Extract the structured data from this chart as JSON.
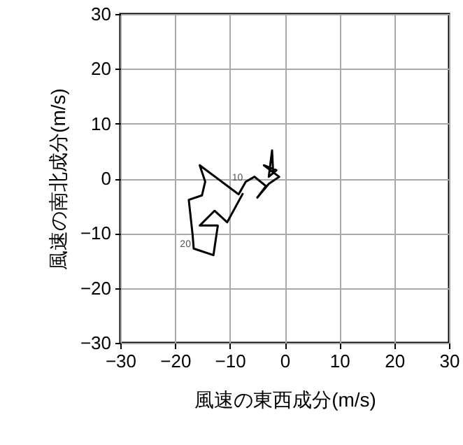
{
  "chart_data": {
    "type": "line",
    "xlabel": "風速の東西成分(m/s)",
    "ylabel": "風速の南北成分(m/s)",
    "x": [
      -2.1,
      -2.3,
      -2.9,
      -1.5,
      -3.8,
      -1.0,
      -2.9,
      -5.0,
      -3.4,
      -5.5,
      -7.1,
      -8.4,
      -15.5,
      -14.5,
      -15.1,
      -17.5,
      -16.8,
      -16.6,
      -13.0,
      -12.2,
      -15.5,
      -12.8,
      -10.5,
      -7.6
    ],
    "series": [
      {
        "color": "#000000",
        "values": [
          1.1,
          5.1,
          0.3,
          1.5,
          2.4,
          0.3,
          -1.0,
          -3.5,
          -1.4,
          0.3,
          -0.6,
          -2.9,
          2.4,
          -0.6,
          -3.1,
          -3.9,
          -10.3,
          -12.8,
          -14.0,
          -8.6,
          -8.6,
          -5.9,
          -8.0,
          -2.7
        ]
      }
    ],
    "xlim": [
      -30,
      30
    ],
    "ylim": [
      -30,
      30
    ],
    "xticks": [
      -30,
      -20,
      -10,
      0,
      10,
      20,
      30
    ],
    "yticks": [
      -30,
      -20,
      -10,
      0,
      10,
      20,
      30
    ],
    "grid": true,
    "marker": "none",
    "line_style": "solid",
    "annotations": [
      {
        "text": "10",
        "x": -7.1,
        "y": -0.6
      },
      {
        "text": "20",
        "x": -16.6,
        "y": -12.8
      }
    ]
  }
}
